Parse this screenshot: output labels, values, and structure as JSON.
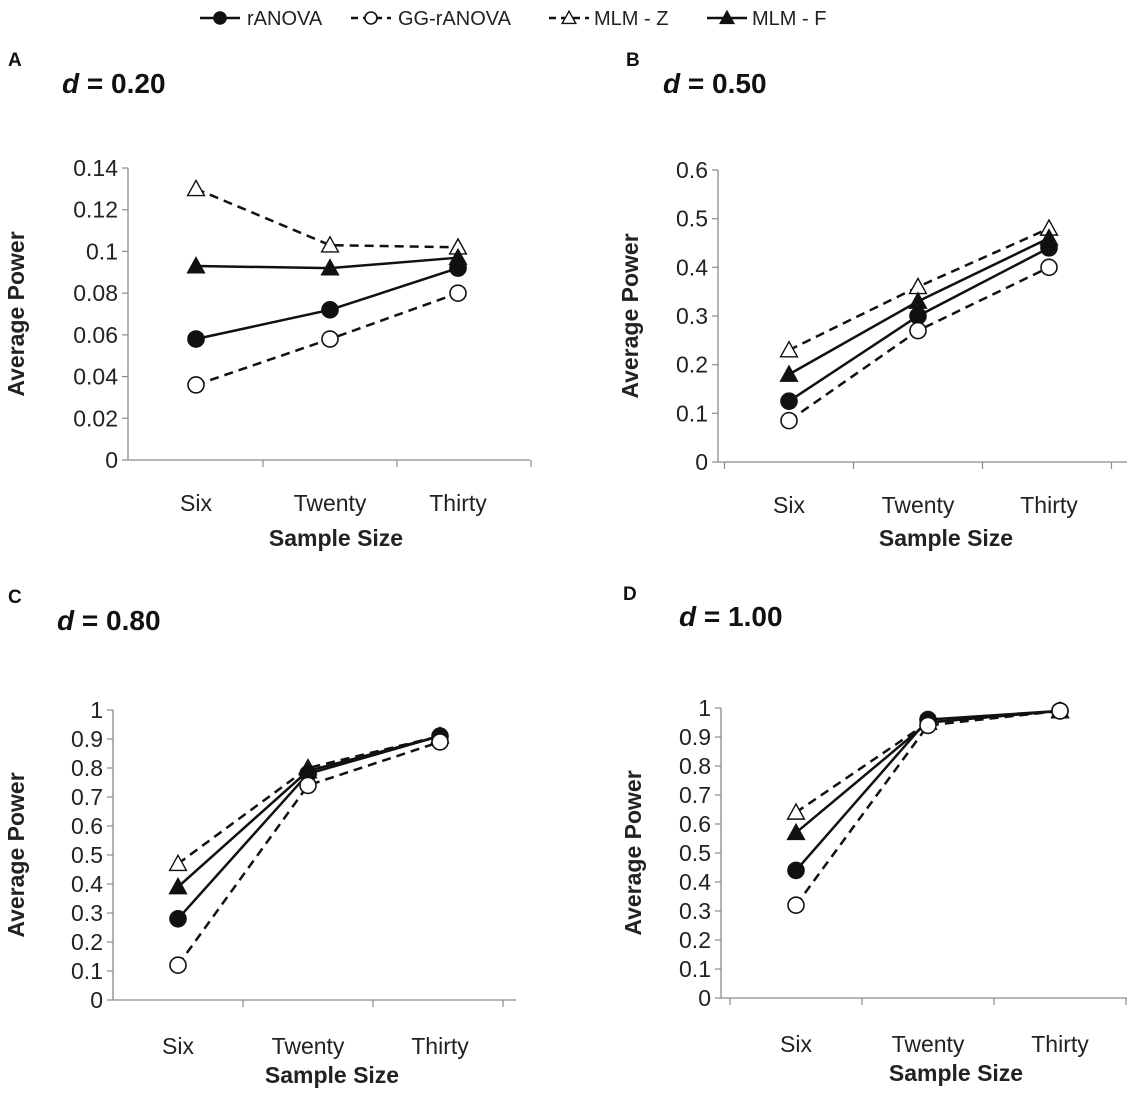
{
  "legend": [
    {
      "label": "rANOVA",
      "marker": "filled-circle",
      "dash": "solid"
    },
    {
      "label": "GG-rANOVA",
      "marker": "open-circle",
      "dash": "dashed"
    },
    {
      "label": "MLM - Z",
      "marker": "open-triangle",
      "dash": "dashed"
    },
    {
      "label": "MLM - F",
      "marker": "filled-triangle",
      "dash": "solid"
    }
  ],
  "chart_data": [
    {
      "panel": "A",
      "title_var": "d",
      "title_rest": " = 0.20",
      "type": "line",
      "categories": [
        "Six",
        "Twenty",
        "Thirty"
      ],
      "xlabel": "Sample Size",
      "ylabel": "Average Power",
      "ylim": [
        0,
        0.14
      ],
      "yticks": [
        "0",
        "0.02",
        "0.04",
        "0.06",
        "0.08",
        "0.1",
        "0.12",
        "0.14"
      ],
      "series": [
        {
          "name": "MLM - Z",
          "values": [
            0.13,
            0.103,
            0.102
          ]
        },
        {
          "name": "MLM - F",
          "values": [
            0.093,
            0.092,
            0.097
          ]
        },
        {
          "name": "rANOVA",
          "values": [
            0.058,
            0.072,
            0.092
          ]
        },
        {
          "name": "GG-rANOVA",
          "values": [
            0.036,
            0.058,
            0.08
          ]
        }
      ]
    },
    {
      "panel": "B",
      "title_var": "d",
      "title_rest": " = 0.50",
      "type": "line",
      "categories": [
        "Six",
        "Twenty",
        "Thirty"
      ],
      "xlabel": "Sample Size",
      "ylabel": "Average Power",
      "ylim": [
        0,
        0.6
      ],
      "yticks": [
        "0",
        "0.1",
        "0.2",
        "0.3",
        "0.4",
        "0.5",
        "0.6"
      ],
      "series": [
        {
          "name": "MLM - Z",
          "values": [
            0.23,
            0.36,
            0.48
          ]
        },
        {
          "name": "MLM - F",
          "values": [
            0.18,
            0.33,
            0.46
          ]
        },
        {
          "name": "rANOVA",
          "values": [
            0.125,
            0.3,
            0.44
          ]
        },
        {
          "name": "GG-rANOVA",
          "values": [
            0.085,
            0.27,
            0.4
          ]
        }
      ]
    },
    {
      "panel": "C",
      "title_var": "d",
      "title_rest": " = 0.80",
      "type": "line",
      "categories": [
        "Six",
        "Twenty",
        "Thirty"
      ],
      "xlabel": "Sample Size",
      "ylabel": "Average Power",
      "ylim": [
        0,
        1
      ],
      "yticks": [
        "0",
        "0.1",
        "0.2",
        "0.3",
        "0.4",
        "0.5",
        "0.6",
        "0.7",
        "0.8",
        "0.9",
        "1"
      ],
      "series": [
        {
          "name": "MLM - Z",
          "values": [
            0.47,
            0.8,
            0.91
          ]
        },
        {
          "name": "MLM - F",
          "values": [
            0.39,
            0.79,
            0.91
          ]
        },
        {
          "name": "rANOVA",
          "values": [
            0.28,
            0.78,
            0.91
          ]
        },
        {
          "name": "GG-rANOVA",
          "values": [
            0.12,
            0.74,
            0.89
          ]
        }
      ]
    },
    {
      "panel": "D",
      "title_var": "d",
      "title_rest": " = 1.00",
      "type": "line",
      "categories": [
        "Six",
        "Twenty",
        "Thirty"
      ],
      "xlabel": "Sample Size",
      "ylabel": "Average Power",
      "ylim": [
        0,
        1
      ],
      "yticks": [
        "0",
        "0.1",
        "0.2",
        "0.3",
        "0.4",
        "0.5",
        "0.6",
        "0.7",
        "0.8",
        "0.9",
        "1"
      ],
      "series": [
        {
          "name": "MLM - Z",
          "values": [
            0.64,
            0.95,
            0.99
          ]
        },
        {
          "name": "MLM - F",
          "values": [
            0.57,
            0.95,
            0.99
          ]
        },
        {
          "name": "rANOVA",
          "values": [
            0.44,
            0.96,
            0.99
          ]
        },
        {
          "name": "GG-rANOVA",
          "values": [
            0.32,
            0.94,
            0.99
          ]
        }
      ]
    }
  ]
}
